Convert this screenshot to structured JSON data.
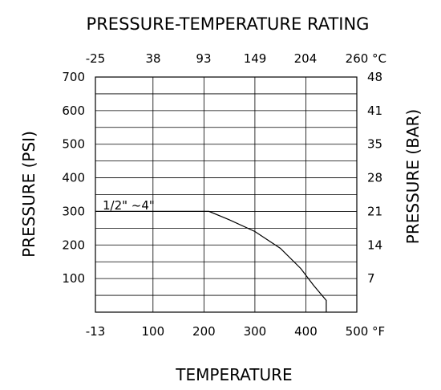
{
  "chart_data": {
    "type": "line",
    "title": "PRESSURE-TEMPERATURE RATING",
    "xlabel": "TEMPERATURE",
    "ylabel_left": "PRESSURE (PSI)",
    "ylabel_right": "PRESSURE (BAR)",
    "x_unit_bottom": "°F",
    "x_unit_top": "°C",
    "xlim": [
      -13,
      500
    ],
    "ylim": [
      0,
      700
    ],
    "x_ticks_bottom": [
      "-13",
      "100",
      "200",
      "300",
      "400",
      "500"
    ],
    "x_ticks_top": [
      "-25",
      "38",
      "93",
      "149",
      "204",
      "260"
    ],
    "y_ticks_left": [
      "100",
      "200",
      "300",
      "400",
      "500",
      "600",
      "700"
    ],
    "y_ticks_right": [
      "7",
      "14",
      "21",
      "28",
      "35",
      "41",
      "48"
    ],
    "grid": true,
    "series": [
      {
        "name": "1/2\" ~4\"",
        "x": [
          -13,
          100,
          200,
          210,
          250,
          300,
          350,
          390,
          415,
          440,
          440
        ],
        "y": [
          300,
          300,
          300,
          300,
          275,
          240,
          190,
          130,
          80,
          35,
          0
        ]
      }
    ]
  }
}
